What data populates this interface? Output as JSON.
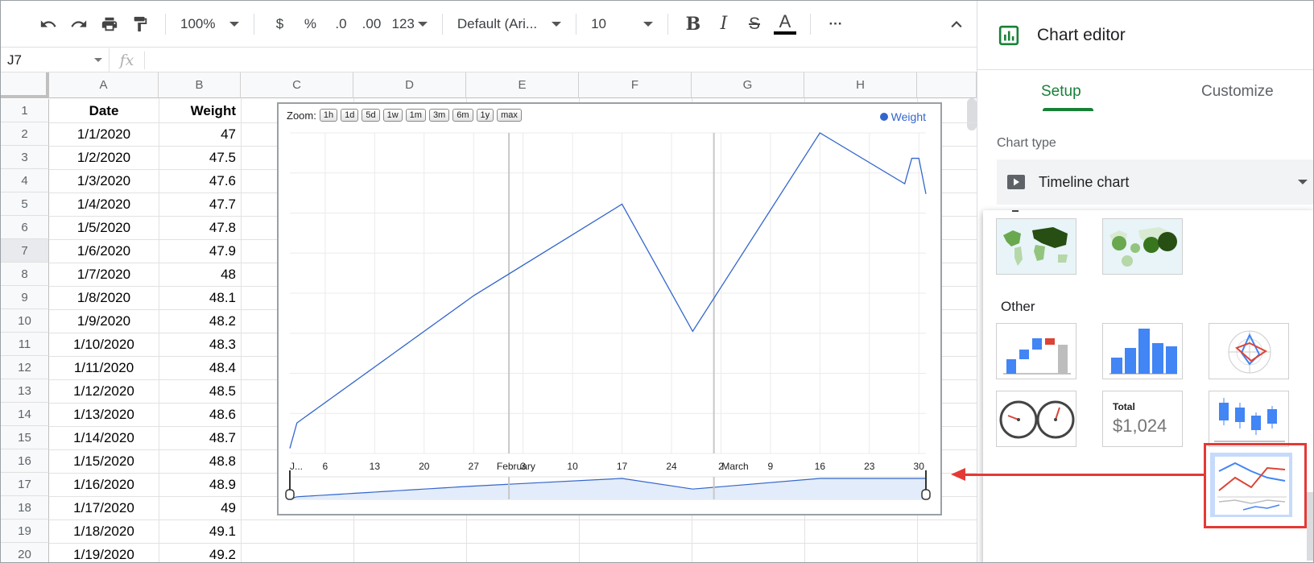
{
  "toolbar": {
    "zoom": "100%",
    "currency": "$",
    "percent": "%",
    "dec_less": ".0",
    "dec_more": ".00",
    "format": "123",
    "font": "Default (Ari...",
    "size": "10",
    "bold": "B",
    "italic": "I",
    "strike": "S",
    "text_color": "A",
    "more": "···"
  },
  "formula_bar": {
    "cell_ref": "J7",
    "fx": "fx"
  },
  "columns": [
    "A",
    "B",
    "C",
    "D",
    "E",
    "F",
    "G",
    "H"
  ],
  "rows": [
    "1",
    "2",
    "3",
    "4",
    "5",
    "6",
    "7",
    "8",
    "9",
    "10",
    "11",
    "12",
    "13",
    "14",
    "15",
    "16",
    "17",
    "18",
    "19",
    "20"
  ],
  "active_row": "7",
  "sheet": {
    "headers": [
      "Date",
      "Weight"
    ],
    "data": [
      [
        "1/1/2020",
        "47"
      ],
      [
        "1/2/2020",
        "47.5"
      ],
      [
        "1/3/2020",
        "47.6"
      ],
      [
        "1/4/2020",
        "47.7"
      ],
      [
        "1/5/2020",
        "47.8"
      ],
      [
        "1/6/2020",
        "47.9"
      ],
      [
        "1/7/2020",
        "48"
      ],
      [
        "1/8/2020",
        "48.1"
      ],
      [
        "1/9/2020",
        "48.2"
      ],
      [
        "1/10/2020",
        "48.3"
      ],
      [
        "1/11/2020",
        "48.4"
      ],
      [
        "1/12/2020",
        "48.5"
      ],
      [
        "1/13/2020",
        "48.6"
      ],
      [
        "1/14/2020",
        "48.7"
      ],
      [
        "1/15/2020",
        "48.8"
      ],
      [
        "1/16/2020",
        "48.9"
      ],
      [
        "1/17/2020",
        "49"
      ],
      [
        "1/18/2020",
        "49.1"
      ],
      [
        "1/19/2020",
        "49.2"
      ]
    ]
  },
  "chart": {
    "zoom_label": "Zoom:",
    "zoom_buttons": [
      "1h",
      "1d",
      "5d",
      "1w",
      "1m",
      "3m",
      "6m",
      "1y",
      "max"
    ],
    "legend": "Weight",
    "line_color": "#3366cc",
    "x_tick_labels": [
      "J...",
      "6",
      "13",
      "20",
      "27",
      "February",
      "3",
      "10",
      "17",
      "24",
      "March",
      "2",
      "9",
      "16",
      "23",
      "30"
    ]
  },
  "chart_data": {
    "type": "line",
    "title": "",
    "series": [
      {
        "name": "Weight",
        "x": [
          "2020-01-01",
          "2020-01-02",
          "2020-01-03",
          "2020-01-04",
          "2020-01-05",
          "2020-01-06",
          "2020-01-07",
          "2020-01-08",
          "2020-01-09",
          "2020-01-10",
          "2020-01-11",
          "2020-01-12",
          "2020-01-13",
          "2020-01-14",
          "2020-01-15",
          "2020-01-16",
          "2020-01-17",
          "2020-01-18",
          "2020-01-19",
          "2020-01-20",
          "2020-01-21",
          "2020-01-22",
          "2020-01-23",
          "2020-01-24",
          "2020-01-25",
          "2020-01-26",
          "2020-01-27",
          "2020-02-17",
          "2020-02-27",
          "2020-03-16",
          "2020-03-28",
          "2020-03-29",
          "2020-03-30",
          "2020-03-31"
        ],
        "values": [
          47,
          47.5,
          47.6,
          47.7,
          47.8,
          47.9,
          48,
          48.1,
          48.2,
          48.3,
          48.4,
          48.5,
          48.6,
          48.7,
          48.8,
          48.9,
          49,
          49.1,
          49.2,
          49.3,
          49.4,
          49.5,
          49.6,
          49.7,
          49.8,
          49.9,
          50,
          51.8,
          49.3,
          53.2,
          52.2,
          52.7,
          52.7,
          52.0
        ]
      }
    ],
    "grid": true,
    "legend": "top-right"
  },
  "panel": {
    "title": "Chart editor",
    "tabs": [
      "Setup",
      "Customize"
    ],
    "chart_type_label": "Chart type",
    "chart_type_value": "Timeline chart",
    "other_label": "Other",
    "scorecard_title": "Total",
    "scorecard_value": "$1,024"
  }
}
